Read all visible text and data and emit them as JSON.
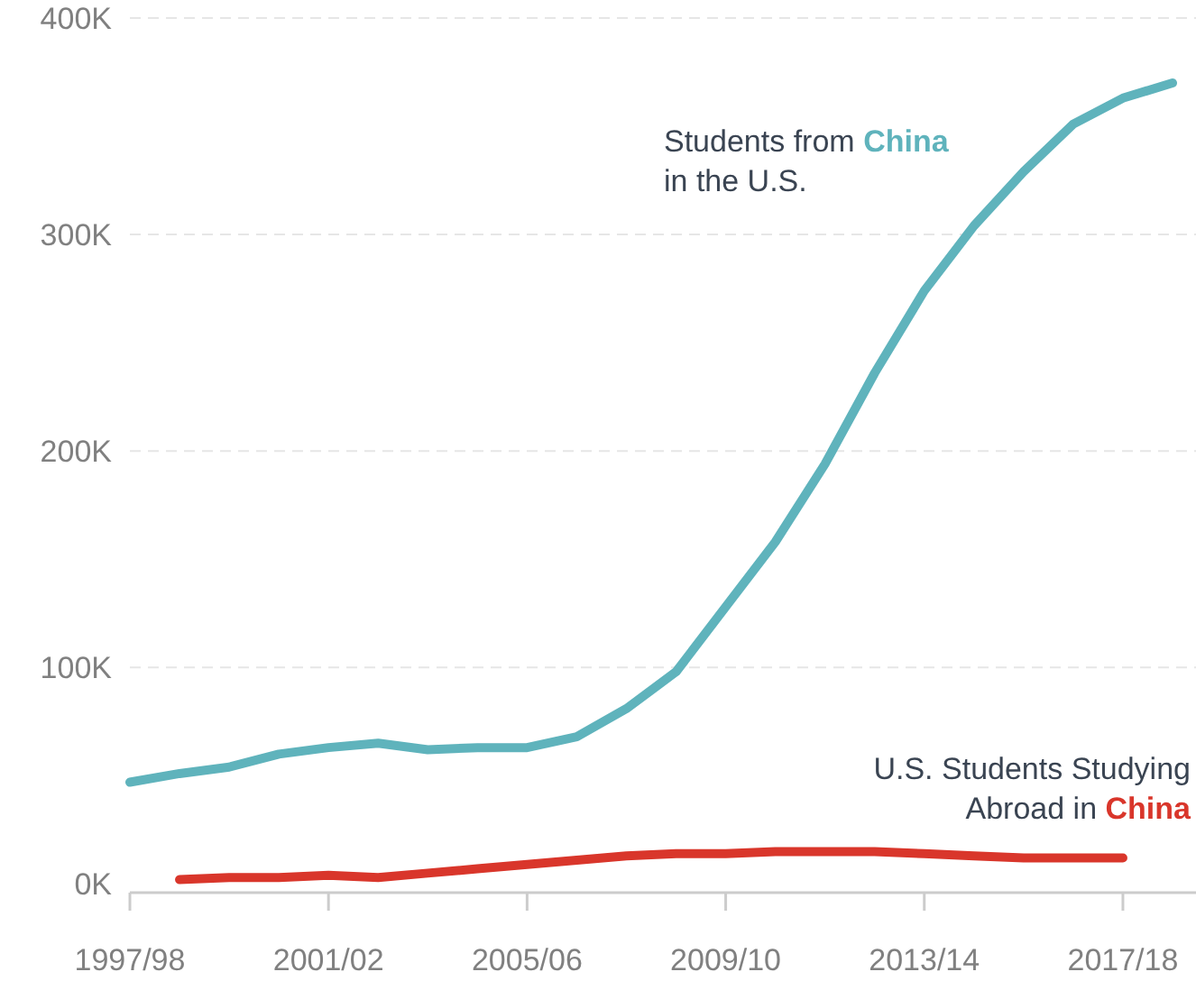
{
  "chart_data": {
    "type": "line",
    "categories": [
      "1997/98",
      null,
      null,
      null,
      "2001/02",
      null,
      null,
      null,
      "2005/06",
      null,
      null,
      null,
      "2009/10",
      null,
      null,
      null,
      "2013/14",
      null,
      null,
      null,
      "2017/18",
      null
    ],
    "series": [
      {
        "name": "Students from China in the U.S.",
        "color": "#5fb3bc",
        "values": [
          47000,
          51000,
          54000,
          60000,
          63000,
          65000,
          62000,
          63000,
          63000,
          68000,
          81000,
          98000,
          128000,
          158000,
          194000,
          236000,
          274000,
          304000,
          329000,
          351000,
          363000,
          370000
        ]
      },
      {
        "name": "U.S. Students Studying Abroad in China",
        "color": "#d9362b",
        "values": [
          null,
          2000,
          3000,
          3000,
          4000,
          3000,
          5000,
          7000,
          9000,
          11000,
          13000,
          14000,
          14000,
          15000,
          15000,
          15000,
          14000,
          13000,
          12000,
          12000,
          12000,
          null
        ]
      }
    ],
    "ylim": [
      -4000,
      400000
    ],
    "yticks": [
      {
        "value": 0,
        "label": "0K"
      },
      {
        "value": 100000,
        "label": "100K"
      },
      {
        "value": 200000,
        "label": "200K"
      },
      {
        "value": 300000,
        "label": "300K"
      },
      {
        "value": 400000,
        "label": "400K"
      }
    ],
    "grid": "y",
    "legend": false,
    "marker": "none",
    "line_style": "solid"
  }
}
